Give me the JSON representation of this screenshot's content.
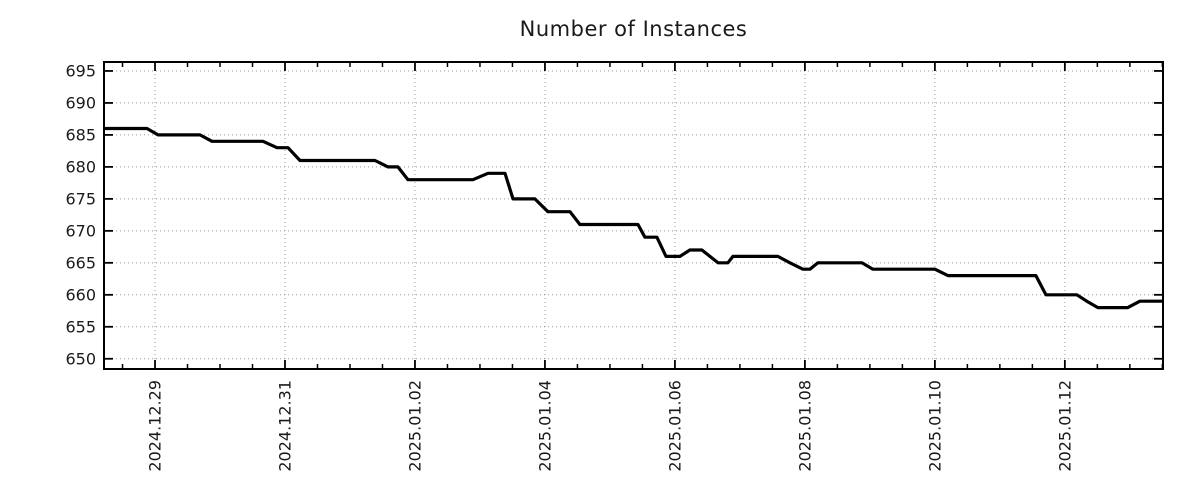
{
  "page": {
    "background": "#ffffff"
  },
  "chart_data": {
    "type": "line",
    "title": "Number of Instances",
    "title_color": "#1a1a1a",
    "line_color": "#000000",
    "line_width": 3.2,
    "grid_color": "#9b9b9b",
    "axis_color": "#000000",
    "grid": "dotted",
    "legend": "none",
    "x_axis": {
      "day_zero_label": "2024.12.29",
      "tick_labels": [
        "2024.12.29",
        "2024.12.31",
        "2025.01.02",
        "2025.01.04",
        "2025.01.06",
        "2025.01.08",
        "2025.01.10",
        "2025.01.12"
      ],
      "major_tick_days": [
        0,
        2,
        4,
        6,
        8,
        10,
        12,
        14
      ],
      "minor_interval_days": 0.5,
      "range_days": [
        -0.785,
        15.51
      ],
      "label_rotation_deg": -90
    },
    "y_axis": {
      "tick_values": [
        695,
        690,
        685,
        680,
        675,
        670,
        665,
        660,
        655,
        650
      ],
      "range": [
        648.4,
        696.4
      ]
    },
    "series": [
      {
        "name": "Number of Instances",
        "points": [
          [
            -0.785,
            686
          ],
          [
            -0.123,
            686
          ],
          [
            0.046,
            685
          ],
          [
            0.692,
            685
          ],
          [
            0.877,
            684
          ],
          [
            1.662,
            684
          ],
          [
            1.877,
            683
          ],
          [
            2.046,
            683
          ],
          [
            2.231,
            681
          ],
          [
            3.385,
            681
          ],
          [
            3.585,
            680
          ],
          [
            3.738,
            680
          ],
          [
            3.892,
            678
          ],
          [
            4.892,
            678
          ],
          [
            5.123,
            679
          ],
          [
            5.385,
            679
          ],
          [
            5.508,
            675
          ],
          [
            5.846,
            675
          ],
          [
            6.046,
            673
          ],
          [
            6.385,
            673
          ],
          [
            6.538,
            671
          ],
          [
            7.431,
            671
          ],
          [
            7.538,
            669
          ],
          [
            7.723,
            669
          ],
          [
            7.862,
            666
          ],
          [
            8.077,
            666
          ],
          [
            8.231,
            667
          ],
          [
            8.415,
            667
          ],
          [
            8.662,
            665
          ],
          [
            8.815,
            665
          ],
          [
            8.892,
            666
          ],
          [
            9.585,
            666
          ],
          [
            9.769,
            665
          ],
          [
            9.969,
            664
          ],
          [
            10.077,
            664
          ],
          [
            10.2,
            665
          ],
          [
            10.877,
            665
          ],
          [
            11.046,
            664
          ],
          [
            12.0,
            664
          ],
          [
            12.2,
            663
          ],
          [
            13.554,
            663
          ],
          [
            13.708,
            660
          ],
          [
            14.185,
            660
          ],
          [
            14.338,
            659
          ],
          [
            14.508,
            658
          ],
          [
            14.969,
            658
          ],
          [
            15.154,
            659
          ],
          [
            15.51,
            659
          ]
        ]
      }
    ]
  }
}
